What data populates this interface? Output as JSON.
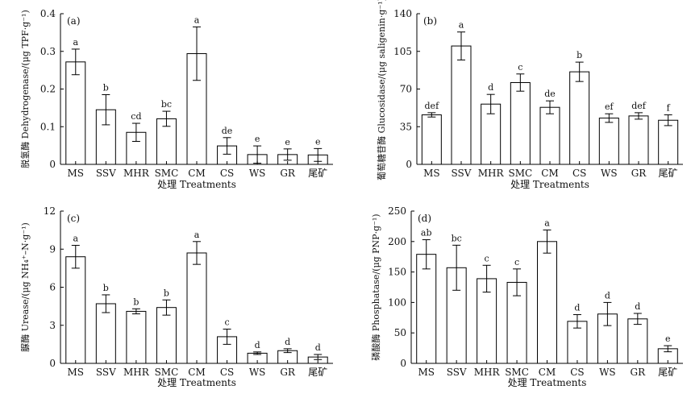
{
  "chart_data": [
    {
      "type": "bar",
      "panel": "(a)",
      "ylabel": "脱氢酶 Dehydrogenase/(μg TPF·g⁻¹)",
      "xlabel": "处理 Treatments",
      "categories": [
        "MS",
        "SSV",
        "MHR",
        "SMC",
        "CM",
        "CS",
        "WS",
        "GR",
        "尾矿"
      ],
      "values": [
        0.272,
        0.145,
        0.085,
        0.121,
        0.294,
        0.049,
        0.026,
        0.026,
        0.025
      ],
      "errors": [
        0.034,
        0.04,
        0.024,
        0.02,
        0.071,
        0.022,
        0.023,
        0.015,
        0.017
      ],
      "letters": [
        "a",
        "b",
        "cd",
        "bc",
        "a",
        "de",
        "e",
        "e",
        "e"
      ],
      "ylim": [
        0,
        0.4
      ],
      "yticks": [
        "0",
        "0.1",
        "0.2",
        "0.3",
        "0.4"
      ],
      "ytick_values": [
        0,
        0.1,
        0.2,
        0.3,
        0.4
      ]
    },
    {
      "type": "bar",
      "panel": "(b)",
      "ylabel": "葡萄糖苷酶 Glucosidase/(μg saligenin·g⁻¹)",
      "xlabel": "处理 Treatments",
      "categories": [
        "MS",
        "SSV",
        "MHR",
        "SMC",
        "CM",
        "CS",
        "WS",
        "GR",
        "尾矿"
      ],
      "values": [
        46,
        110,
        56,
        76,
        53,
        86,
        43,
        45,
        41
      ],
      "errors": [
        2,
        13,
        9,
        8,
        6,
        9,
        4,
        3,
        5
      ],
      "letters": [
        "def",
        "a",
        "d",
        "c",
        "de",
        "b",
        "ef",
        "def",
        "f"
      ],
      "ylim": [
        0,
        140
      ],
      "yticks": [
        "0",
        "35",
        "70",
        "105",
        "140"
      ],
      "ytick_values": [
        0,
        35,
        70,
        105,
        140
      ]
    },
    {
      "type": "bar",
      "panel": "(c)",
      "ylabel": "脲酶 Urease/(μg NH₄⁺–N·g⁻¹)",
      "xlabel": "处理 Treatments",
      "categories": [
        "MS",
        "SSV",
        "MHR",
        "SMC",
        "CM",
        "CS",
        "WS",
        "GR",
        "尾矿"
      ],
      "values": [
        8.4,
        4.7,
        4.1,
        4.4,
        8.7,
        2.1,
        0.8,
        1.0,
        0.5
      ],
      "errors": [
        0.9,
        0.7,
        0.2,
        0.6,
        0.9,
        0.6,
        0.1,
        0.15,
        0.2
      ],
      "letters": [
        "a",
        "b",
        "b",
        "b",
        "a",
        "c",
        "d",
        "d",
        "d"
      ],
      "ylim": [
        0,
        12
      ],
      "yticks": [
        "0",
        "3",
        "6",
        "9",
        "12"
      ],
      "ytick_values": [
        0,
        3,
        6,
        9,
        12
      ]
    },
    {
      "type": "bar",
      "panel": "(d)",
      "ylabel": "磷酸酶 Phosphatase/(μg PNP·g⁻¹)",
      "xlabel": "处理 Treatments",
      "categories": [
        "MS",
        "SSV",
        "MHR",
        "SMC",
        "CM",
        "CS",
        "WS",
        "GR",
        "尾矿"
      ],
      "values": [
        179,
        157,
        139,
        133,
        200,
        69,
        81,
        73,
        24
      ],
      "errors": [
        24,
        37,
        22,
        22,
        19,
        11,
        19,
        9,
        5
      ],
      "letters": [
        "ab",
        "bc",
        "c",
        "c",
        "a",
        "d",
        "d",
        "d",
        "e"
      ],
      "ylim": [
        0,
        250
      ],
      "yticks": [
        "0",
        "50",
        "100",
        "150",
        "200",
        "250"
      ],
      "ytick_values": [
        0,
        50,
        100,
        150,
        200,
        250
      ]
    }
  ]
}
